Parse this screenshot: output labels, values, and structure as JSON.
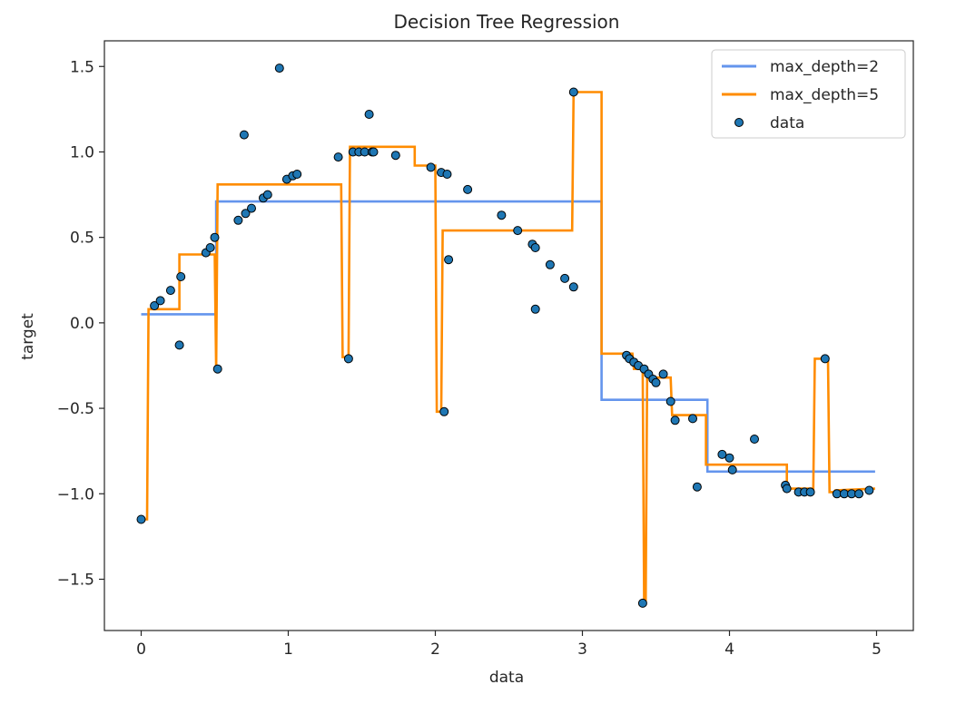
{
  "chart_data": {
    "type": "line+scatter",
    "title": "Decision Tree Regression",
    "xlabel": "data",
    "ylabel": "target",
    "xlim": [
      -0.25,
      5.25
    ],
    "ylim": [
      -1.8,
      1.65
    ],
    "xticks": [
      0,
      1,
      2,
      3,
      4,
      5
    ],
    "xtick_labels": [
      "0",
      "1",
      "2",
      "3",
      "4",
      "5"
    ],
    "yticks": [
      -1.5,
      -1.0,
      -0.5,
      0.0,
      0.5,
      1.0,
      1.5
    ],
    "ytick_labels": [
      "−1.5",
      "−1.0",
      "−0.5",
      "0.0",
      "0.5",
      "1.0",
      "1.5"
    ],
    "grid": false,
    "legend_position": "top-right",
    "colors": {
      "max_depth_2": "#6495ed",
      "max_depth_5": "#ff8c00",
      "data": "#1f77b4",
      "data_edge": "#000000",
      "axes": "#262626"
    },
    "series": [
      {
        "name": "max_depth=2",
        "kind": "step",
        "x": [
          0.0,
          0.51,
          0.51,
          3.13,
          3.13,
          3.85,
          3.85,
          4.99
        ],
        "y": [
          0.05,
          0.05,
          0.71,
          0.71,
          -0.45,
          -0.45,
          -0.87,
          -0.87
        ]
      },
      {
        "name": "max_depth=5",
        "kind": "step",
        "x": [
          0.0,
          0.04,
          0.05,
          0.26,
          0.26,
          0.5,
          0.51,
          0.52,
          1.36,
          1.37,
          1.41,
          1.42,
          1.86,
          1.86,
          2.0,
          2.01,
          2.04,
          2.05,
          2.93,
          2.94,
          3.13,
          3.13,
          3.34,
          3.35,
          3.41,
          3.42,
          3.43,
          3.44,
          3.6,
          3.61,
          3.84,
          3.84,
          4.39,
          4.39,
          4.57,
          4.58,
          4.67,
          4.68,
          4.71,
          4.72,
          4.99
        ],
        "y": [
          -1.15,
          -1.15,
          0.08,
          0.08,
          0.4,
          0.4,
          -0.27,
          0.81,
          0.81,
          -0.2,
          -0.2,
          1.03,
          1.03,
          0.92,
          0.92,
          -0.52,
          -0.52,
          0.54,
          0.54,
          1.35,
          1.35,
          -0.18,
          -0.18,
          -0.27,
          -0.27,
          -1.64,
          -1.64,
          -0.32,
          -0.32,
          -0.54,
          -0.54,
          -0.83,
          -0.83,
          -0.97,
          -0.97,
          -0.21,
          -0.21,
          -0.99,
          -0.99,
          -0.98,
          -0.97
        ]
      }
    ],
    "scatter": {
      "name": "data",
      "x": [
        0.0,
        0.09,
        0.13,
        0.2,
        0.26,
        0.27,
        0.44,
        0.47,
        0.5,
        0.52,
        0.66,
        0.7,
        0.71,
        0.75,
        0.83,
        0.86,
        0.94,
        0.99,
        1.03,
        1.06,
        1.34,
        1.41,
        1.44,
        1.48,
        1.52,
        1.55,
        1.57,
        1.58,
        1.73,
        1.97,
        2.04,
        2.06,
        2.08,
        2.09,
        2.22,
        2.45,
        2.56,
        2.66,
        2.68,
        2.68,
        2.78,
        2.88,
        2.94,
        2.94,
        3.3,
        3.32,
        3.35,
        3.38,
        3.41,
        3.42,
        3.45,
        3.48,
        3.5,
        3.55,
        3.6,
        3.63,
        3.75,
        3.78,
        3.95,
        4.0,
        4.02,
        4.17,
        4.38,
        4.39,
        4.47,
        4.51,
        4.55,
        4.65,
        4.73,
        4.78,
        4.83,
        4.88,
        4.95
      ],
      "y": [
        -1.15,
        0.1,
        0.13,
        0.19,
        -0.13,
        0.27,
        0.41,
        0.44,
        0.5,
        -0.27,
        0.6,
        1.1,
        0.64,
        0.67,
        0.73,
        0.75,
        1.49,
        0.84,
        0.86,
        0.87,
        0.97,
        -0.21,
        1.0,
        1.0,
        1.0,
        1.22,
        1.0,
        1.0,
        0.98,
        0.91,
        0.88,
        -0.52,
        0.87,
        0.37,
        0.78,
        0.63,
        0.54,
        0.46,
        0.44,
        0.08,
        0.34,
        0.26,
        0.21,
        1.35,
        -0.19,
        -0.21,
        -0.23,
        -0.25,
        -1.64,
        -0.27,
        -0.3,
        -0.33,
        -0.35,
        -0.3,
        -0.46,
        -0.57,
        -0.56,
        -0.96,
        -0.77,
        -0.79,
        -0.86,
        -0.68,
        -0.95,
        -0.97,
        -0.99,
        -0.99,
        -0.99,
        -0.21,
        -1.0,
        -1.0,
        -1.0,
        -1.0,
        -0.98
      ]
    }
  }
}
